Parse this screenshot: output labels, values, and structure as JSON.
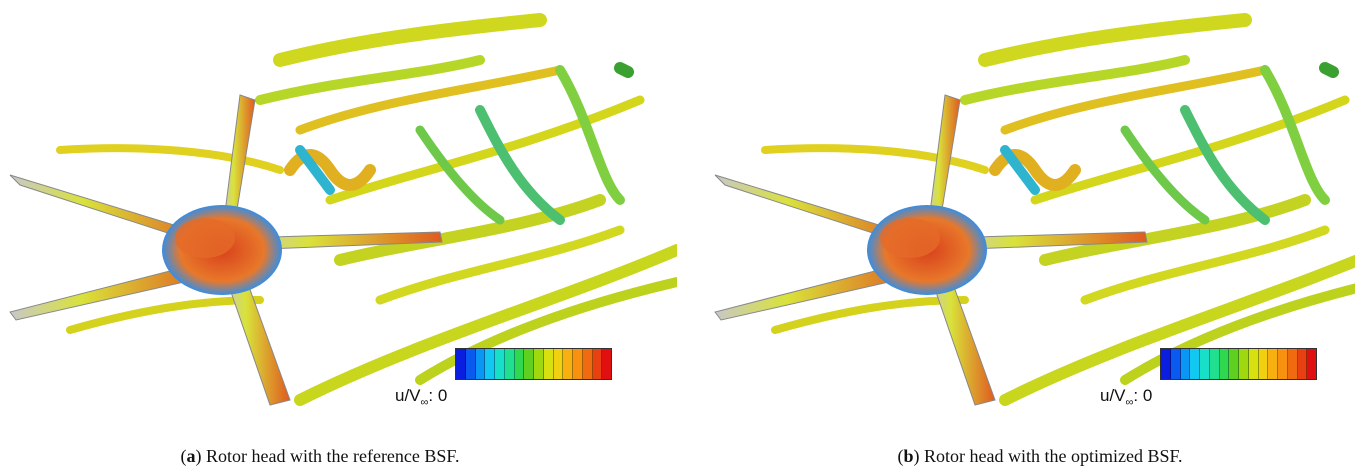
{
  "panels": [
    {
      "caption": {
        "open": "(",
        "label": "a",
        "close": ")",
        "text": " Rotor head with the reference BSF."
      },
      "colorbar": {
        "label": "u/V",
        "subscript": "∞",
        "separator": ":",
        "tick": "0"
      }
    },
    {
      "caption": {
        "open": "(",
        "label": "b",
        "close": ")",
        "text": " Rotor head with the optimized BSF."
      },
      "colorbar": {
        "label": "u/V",
        "subscript": "∞",
        "separator": ":",
        "tick": "0"
      }
    }
  ]
}
